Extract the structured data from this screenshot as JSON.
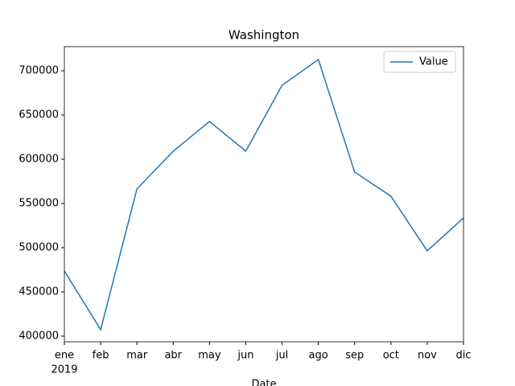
{
  "chart_data": {
    "type": "line",
    "title": "Washington",
    "x_label": "Date",
    "year_label": "2019",
    "categories": [
      "ene",
      "feb",
      "mar",
      "abr",
      "may",
      "jun",
      "jul",
      "ago",
      "sep",
      "oct",
      "nov",
      "dic"
    ],
    "series": [
      {
        "name": "Value",
        "color": "#1f77b4",
        "values": [
          473600,
          407300,
          566400,
          609100,
          642700,
          609100,
          683600,
          712700,
          585500,
          558200,
          496400,
          533600
        ]
      }
    ],
    "ylim": [
      393600,
      727300
    ],
    "yticks": [
      400000,
      450000,
      500000,
      550000,
      600000,
      650000,
      700000
    ],
    "legend": "upper right",
    "grid": false
  }
}
